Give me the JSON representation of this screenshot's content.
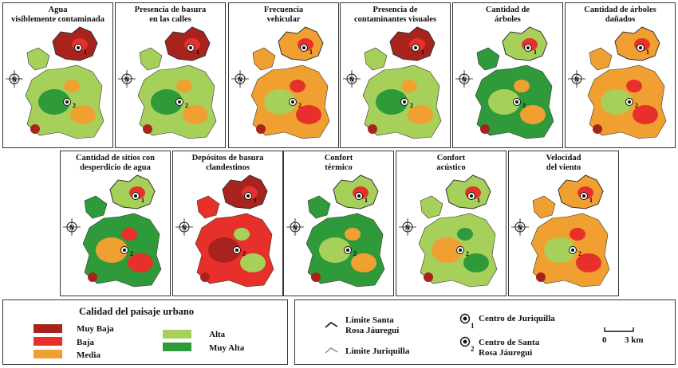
{
  "maps": [
    {
      "title": "Agua\nvisiblemente contaminada",
      "north": "N",
      "marker1": "1",
      "marker2": "2",
      "palette": "north_red"
    },
    {
      "title": "Presencia de basura\nen las calles",
      "north": "N",
      "marker1": "1",
      "marker2": "2",
      "palette": "north_red"
    },
    {
      "title": "Frecuencia\nvehicular",
      "north": "N",
      "marker1": "1",
      "marker2": "2",
      "palette": "orange"
    },
    {
      "title": "Presencia de\ncontaminantes visuales",
      "north": "N",
      "marker1": "1",
      "marker2": "2",
      "palette": "north_red"
    },
    {
      "title": "Cantidad de\nárboles",
      "north": "N",
      "marker1": "1",
      "marker2": "2",
      "palette": "green"
    },
    {
      "title": "Cantidad de árboles\ndañados",
      "north": "N",
      "marker1": "1",
      "marker2": "2",
      "palette": "orange"
    },
    {
      "title": "Cantidad de sitios con\ndesperdicio de agua",
      "north": "N",
      "marker1": "1",
      "marker2": "2",
      "palette": "mixed"
    },
    {
      "title": "Depósitos de basura\nclandestinos",
      "north": "N",
      "marker1": "1",
      "marker2": "2",
      "palette": "red"
    },
    {
      "title": "Confort\ntérmico",
      "north": "N",
      "marker1": "1",
      "marker2": "2",
      "palette": "green"
    },
    {
      "title": "Confort\nacústico",
      "north": "N",
      "marker1": "1",
      "marker2": "2",
      "palette": "light"
    },
    {
      "title": "Velocidad\ndel viento",
      "north": "N",
      "marker1": "1",
      "marker2": "2",
      "palette": "orange"
    }
  ],
  "legend": {
    "title": "Calidad del paisaje urbano",
    "classes": [
      {
        "label": "Muy Baja",
        "color": "#a8231d"
      },
      {
        "label": "Baja",
        "color": "#e8302a"
      },
      {
        "label": "Media",
        "color": "#f0a030"
      },
      {
        "label": "Alta",
        "color": "#a6d05a"
      },
      {
        "label": "Muy Alta",
        "color": "#2e9a3a"
      }
    ]
  },
  "ref_legend": {
    "limit_srj": "Límite Santa\nRosa Jáuregui",
    "limit_jur": "Límite Juriquilla",
    "center1": "Centro de Juriquilla",
    "center1_num": "1",
    "center2": "Centro de Santa\nRosa Jáuregui",
    "center2_num": "2",
    "scale_zero": "0",
    "scale_max": "3 km"
  },
  "colors": {
    "muy_baja": "#a8231d",
    "baja": "#e8302a",
    "media": "#f0a030",
    "alta": "#a6d05a",
    "muy_alta": "#2e9a3a",
    "border": "#333333"
  }
}
